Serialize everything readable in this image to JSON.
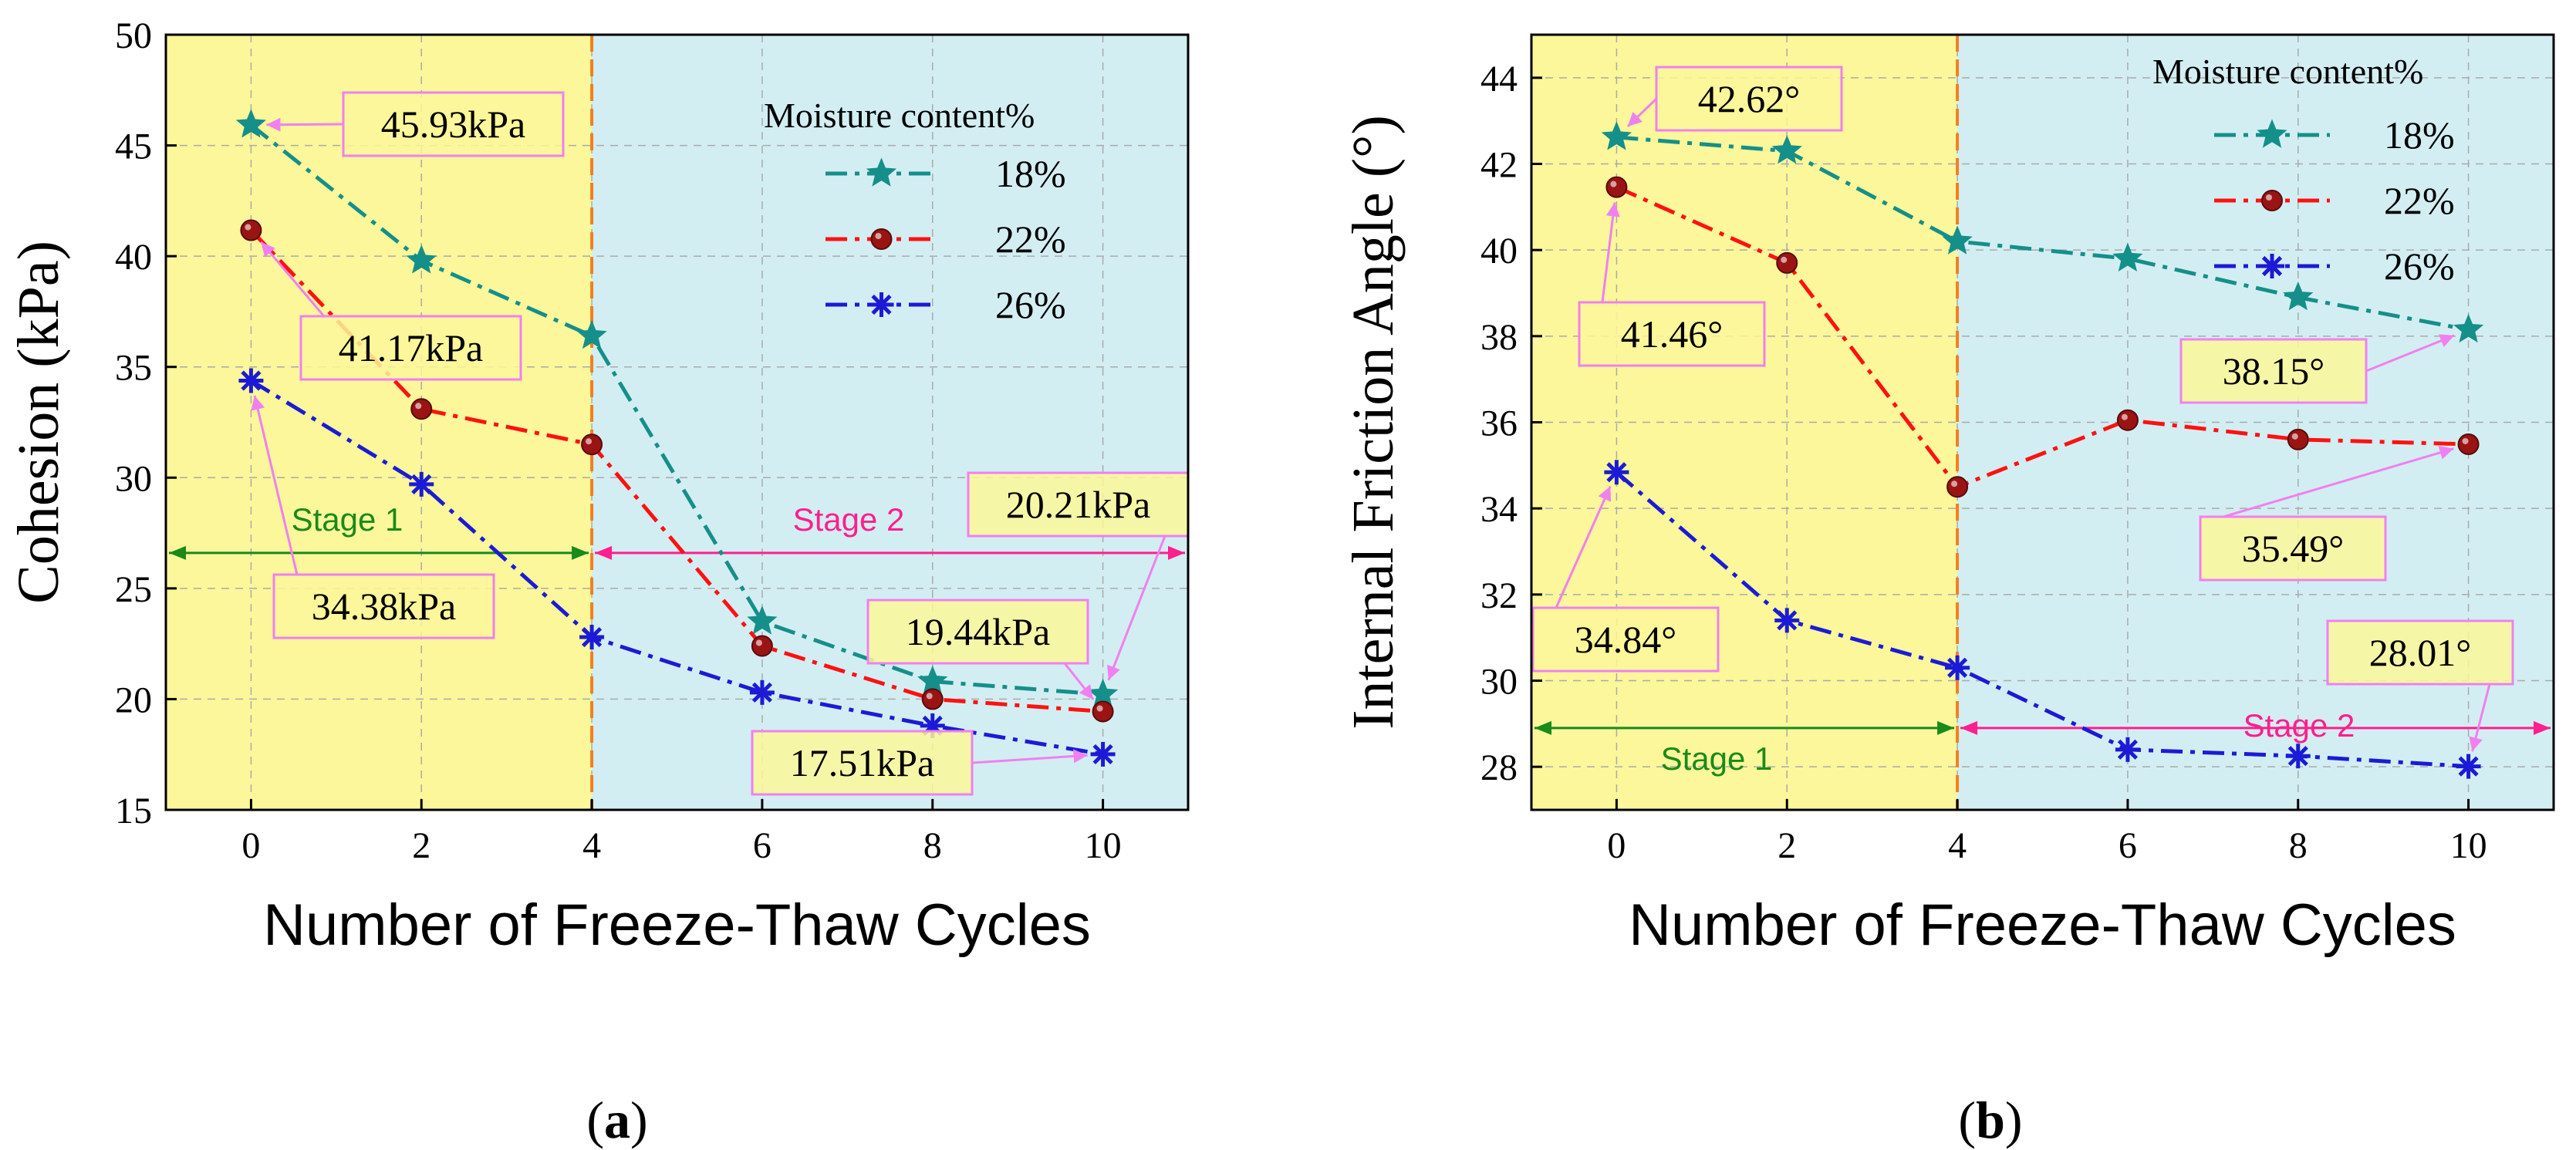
{
  "colors": {
    "stage1_bg": "#fbf79a",
    "stage2_bg": "#d3eef2",
    "series_18": "#158f8a",
    "series_22": "#ff1111",
    "series_26": "#1b1bd6",
    "series_22_marker": "#9b1414",
    "stage1_text": "#1a8a1a",
    "stage2_text": "#ff1f8f",
    "callout_border": "#f080f0",
    "divider": "#f08020",
    "grid": "#aaaaaa"
  },
  "chart_data": [
    {
      "id": "a",
      "type": "line",
      "panel_label": "a",
      "xlabel": "Number of Freeze-Thaw Cycles",
      "ylabel": "Cohesion (kPa)",
      "x": [
        0,
        2,
        4,
        6,
        8,
        10
      ],
      "xticks": [
        "0",
        "2",
        "4",
        "6",
        "8",
        "10"
      ],
      "xlim": [
        -1,
        11
      ],
      "yticks": [
        "15",
        "20",
        "25",
        "30",
        "35",
        "40",
        "45",
        "50"
      ],
      "ylim": [
        15,
        50
      ],
      "grid": true,
      "stage_divider_x": 4,
      "stage_arrow_y": 26.6,
      "legend": {
        "title": "Moisture content%",
        "placement": "top-right"
      },
      "series": [
        {
          "name": "18%",
          "marker": "star",
          "values": [
            45.93,
            39.8,
            36.4,
            23.5,
            20.8,
            20.21
          ]
        },
        {
          "name": "22%",
          "marker": "circle",
          "values": [
            41.17,
            33.1,
            31.5,
            22.4,
            20.0,
            19.44
          ]
        },
        {
          "name": "26%",
          "marker": "asterisk",
          "values": [
            34.38,
            29.7,
            22.8,
            20.3,
            18.8,
            17.51
          ]
        }
      ],
      "stages": [
        {
          "text": "Stage 1",
          "range": [
            -1,
            4
          ]
        },
        {
          "text": "Stage 2",
          "range": [
            4,
            11
          ]
        }
      ],
      "annotations": [
        {
          "text": "45.93kPa",
          "series": 0,
          "point": 0
        },
        {
          "text": "41.17kPa",
          "series": 1,
          "point": 0
        },
        {
          "text": "34.38kPa",
          "series": 2,
          "point": 0
        },
        {
          "text": "20.21kPa",
          "series": 0,
          "point": 5
        },
        {
          "text": "19.44kPa",
          "series": 1,
          "point": 5
        },
        {
          "text": "17.51kPa",
          "series": 2,
          "point": 5
        }
      ]
    },
    {
      "id": "b",
      "type": "line",
      "panel_label": "b",
      "xlabel": "Number of Freeze-Thaw Cycles",
      "ylabel": "Internal Friction Angle (°)",
      "x": [
        0,
        2,
        4,
        6,
        8,
        10
      ],
      "xticks": [
        "0",
        "2",
        "4",
        "6",
        "8",
        "10"
      ],
      "xlim": [
        -1,
        11
      ],
      "yticks": [
        "28",
        "30",
        "32",
        "34",
        "36",
        "38",
        "40",
        "42",
        "44"
      ],
      "ylim": [
        27,
        45
      ],
      "grid": true,
      "stage_divider_x": 4,
      "stage_arrow_y": 28.9,
      "legend": {
        "title": "Moisture content%",
        "placement": "top-right"
      },
      "series": [
        {
          "name": "18%",
          "marker": "star",
          "values": [
            42.62,
            42.3,
            40.2,
            39.8,
            38.9,
            38.15
          ]
        },
        {
          "name": "22%",
          "marker": "circle",
          "values": [
            41.46,
            39.7,
            34.5,
            36.05,
            35.6,
            35.49
          ]
        },
        {
          "name": "26%",
          "marker": "asterisk",
          "values": [
            34.84,
            31.4,
            30.3,
            28.4,
            28.25,
            28.01
          ]
        }
      ],
      "stages": [
        {
          "text": "Stage 1",
          "range": [
            -1,
            4
          ]
        },
        {
          "text": "Stage 2",
          "range": [
            4,
            11
          ]
        }
      ],
      "annotations": [
        {
          "text": "42.62°",
          "series": 0,
          "point": 0
        },
        {
          "text": "41.46°",
          "series": 1,
          "point": 0
        },
        {
          "text": "34.84°",
          "series": 2,
          "point": 0
        },
        {
          "text": "38.15°",
          "series": 0,
          "point": 5
        },
        {
          "text": "35.49°",
          "series": 1,
          "point": 5
        },
        {
          "text": "28.01°",
          "series": 2,
          "point": 5
        }
      ]
    }
  ]
}
